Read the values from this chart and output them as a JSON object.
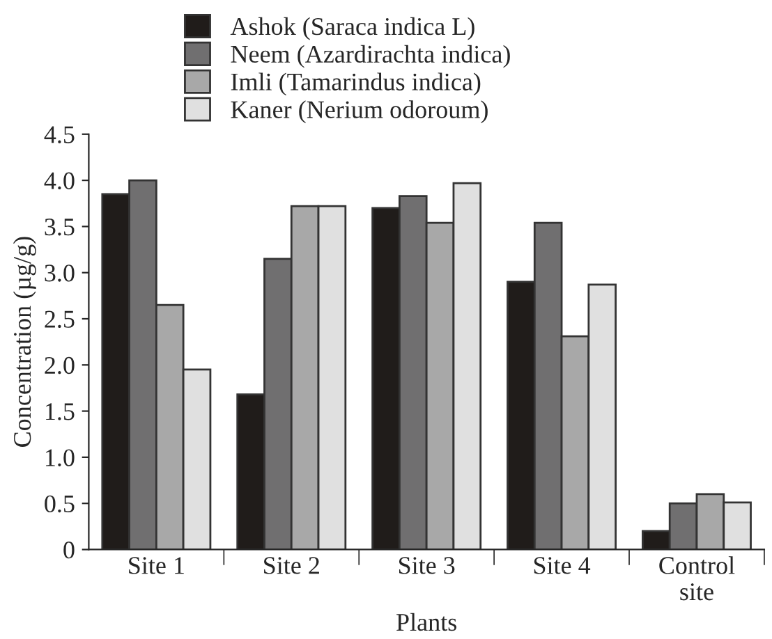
{
  "chart_data": {
    "type": "bar",
    "xlabel": "Plants",
    "ylabel": "Concentration (µg/g)",
    "categories": [
      "Site 1",
      "Site 2",
      "Site 3",
      "Site 4",
      "Control\nsite"
    ],
    "series": [
      {
        "name": "Ashok (Saraca indica L)",
        "color": "#201c1a",
        "values": [
          3.85,
          1.68,
          3.7,
          2.9,
          0.2
        ]
      },
      {
        "name": "Neem (Azardirachta indica)",
        "color": "#706f70",
        "values": [
          4.0,
          3.15,
          3.83,
          3.54,
          0.5
        ]
      },
      {
        "name": "Imli (Tamarindus indica)",
        "color": "#a8a8a8",
        "values": [
          2.65,
          3.72,
          3.54,
          2.31,
          0.6
        ]
      },
      {
        "name": "Kaner (Nerium odoroum)",
        "color": "#e0e0e0",
        "values": [
          1.95,
          3.72,
          3.97,
          2.87,
          0.51
        ]
      }
    ],
    "ylim": [
      0,
      4.5
    ],
    "yticks": [
      0,
      {
        "value": 0.5,
        "label": "0.5"
      },
      {
        "value": 1.0,
        "label": "1.0"
      },
      {
        "value": 1.5,
        "label": "1.5"
      },
      {
        "value": 2.0,
        "label": "2.0"
      },
      {
        "value": 2.5,
        "label": "2.5"
      },
      {
        "value": 3.0,
        "label": "3.0"
      },
      {
        "value": 3.5,
        "label": "3.5"
      },
      {
        "value": 4.0,
        "label": "4.0"
      },
      {
        "value": 4.5,
        "label": "4.5"
      }
    ],
    "grid": false,
    "legend": "top left"
  }
}
